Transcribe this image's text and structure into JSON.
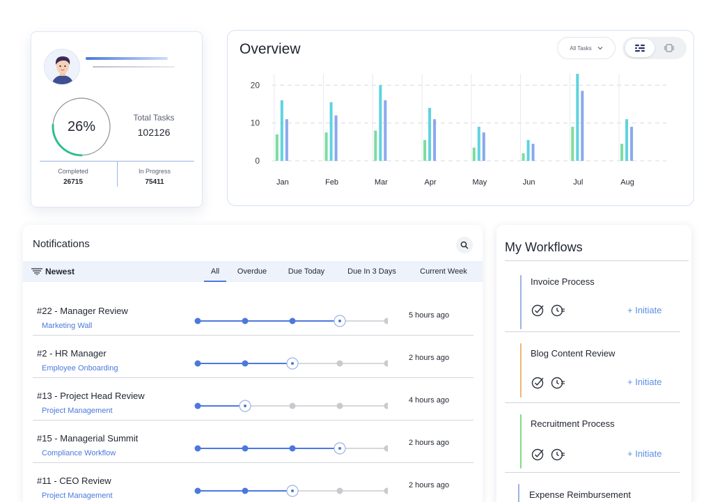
{
  "profile": {
    "progress_percent": 26,
    "progress_label": "26%",
    "total_tasks_label": "Total Tasks",
    "total_tasks_value": "102126",
    "completed_label": "Completed",
    "completed_value": "26715",
    "in_progress_label": "In Progress",
    "in_progress_value": "75411",
    "accent_color": "#2fbf8f"
  },
  "overview": {
    "title": "Overview",
    "filter_value": "All Tasks",
    "view_toggle": [
      "list-view-icon",
      "card-view-icon"
    ]
  },
  "chart_data": {
    "type": "bar",
    "categories": [
      "Jan",
      "Feb",
      "Mar",
      "Apr",
      "May",
      "Jun",
      "Jul",
      "Aug"
    ],
    "series": [
      {
        "color": "#7ddc9e",
        "values": [
          7,
          7.5,
          8,
          5.5,
          3.5,
          2,
          9,
          4.5
        ]
      },
      {
        "color": "#5fd3df",
        "values": [
          16,
          15.5,
          20,
          14,
          9,
          5.5,
          23,
          11
        ]
      },
      {
        "color": "#8aa8ee",
        "values": [
          11,
          12,
          16,
          11,
          7.5,
          4.5,
          18.5,
          9
        ]
      }
    ],
    "yticks": [
      0,
      10,
      20
    ],
    "ylim": [
      0,
      23
    ],
    "grid": true
  },
  "notifications": {
    "title": "Notifications",
    "sort_label": "Newest",
    "tabs": [
      "All",
      "Overdue",
      "Due Today",
      "Due In 3 Days",
      "Current Week"
    ],
    "active_tab": "All",
    "items": [
      {
        "title": "#22 - Manager Review",
        "subtitle": "Marketing Wall",
        "time": "5 hours ago",
        "step": 4,
        "steps": 5
      },
      {
        "title": "#2 - HR Manager",
        "subtitle": "Employee Onboarding",
        "time": "2 hours ago",
        "step": 3,
        "steps": 5
      },
      {
        "title": "#13 - Project Head Review",
        "subtitle": "Project Management",
        "time": "4 hours ago",
        "step": 2,
        "steps": 5
      },
      {
        "title": "#15 - Managerial Summit",
        "subtitle": "Compliance Workflow",
        "time": "2 hours ago",
        "step": 4,
        "steps": 5
      },
      {
        "title": "#11 - CEO Review",
        "subtitle": "Project Management",
        "time": "2 hours ago",
        "step": 3,
        "steps": 5
      }
    ]
  },
  "workflows": {
    "title": "My Workflows",
    "initiate_label": "+ Initiate",
    "items": [
      {
        "name": "Invoice Process",
        "color": "#9bb3e4"
      },
      {
        "name": "Blog Content Review",
        "color": "#f0b774"
      },
      {
        "name": "Recruitment Process",
        "color": "#7ddc8a"
      },
      {
        "name": "Expense Reimbursement",
        "color": "#9bb3e4"
      }
    ]
  }
}
